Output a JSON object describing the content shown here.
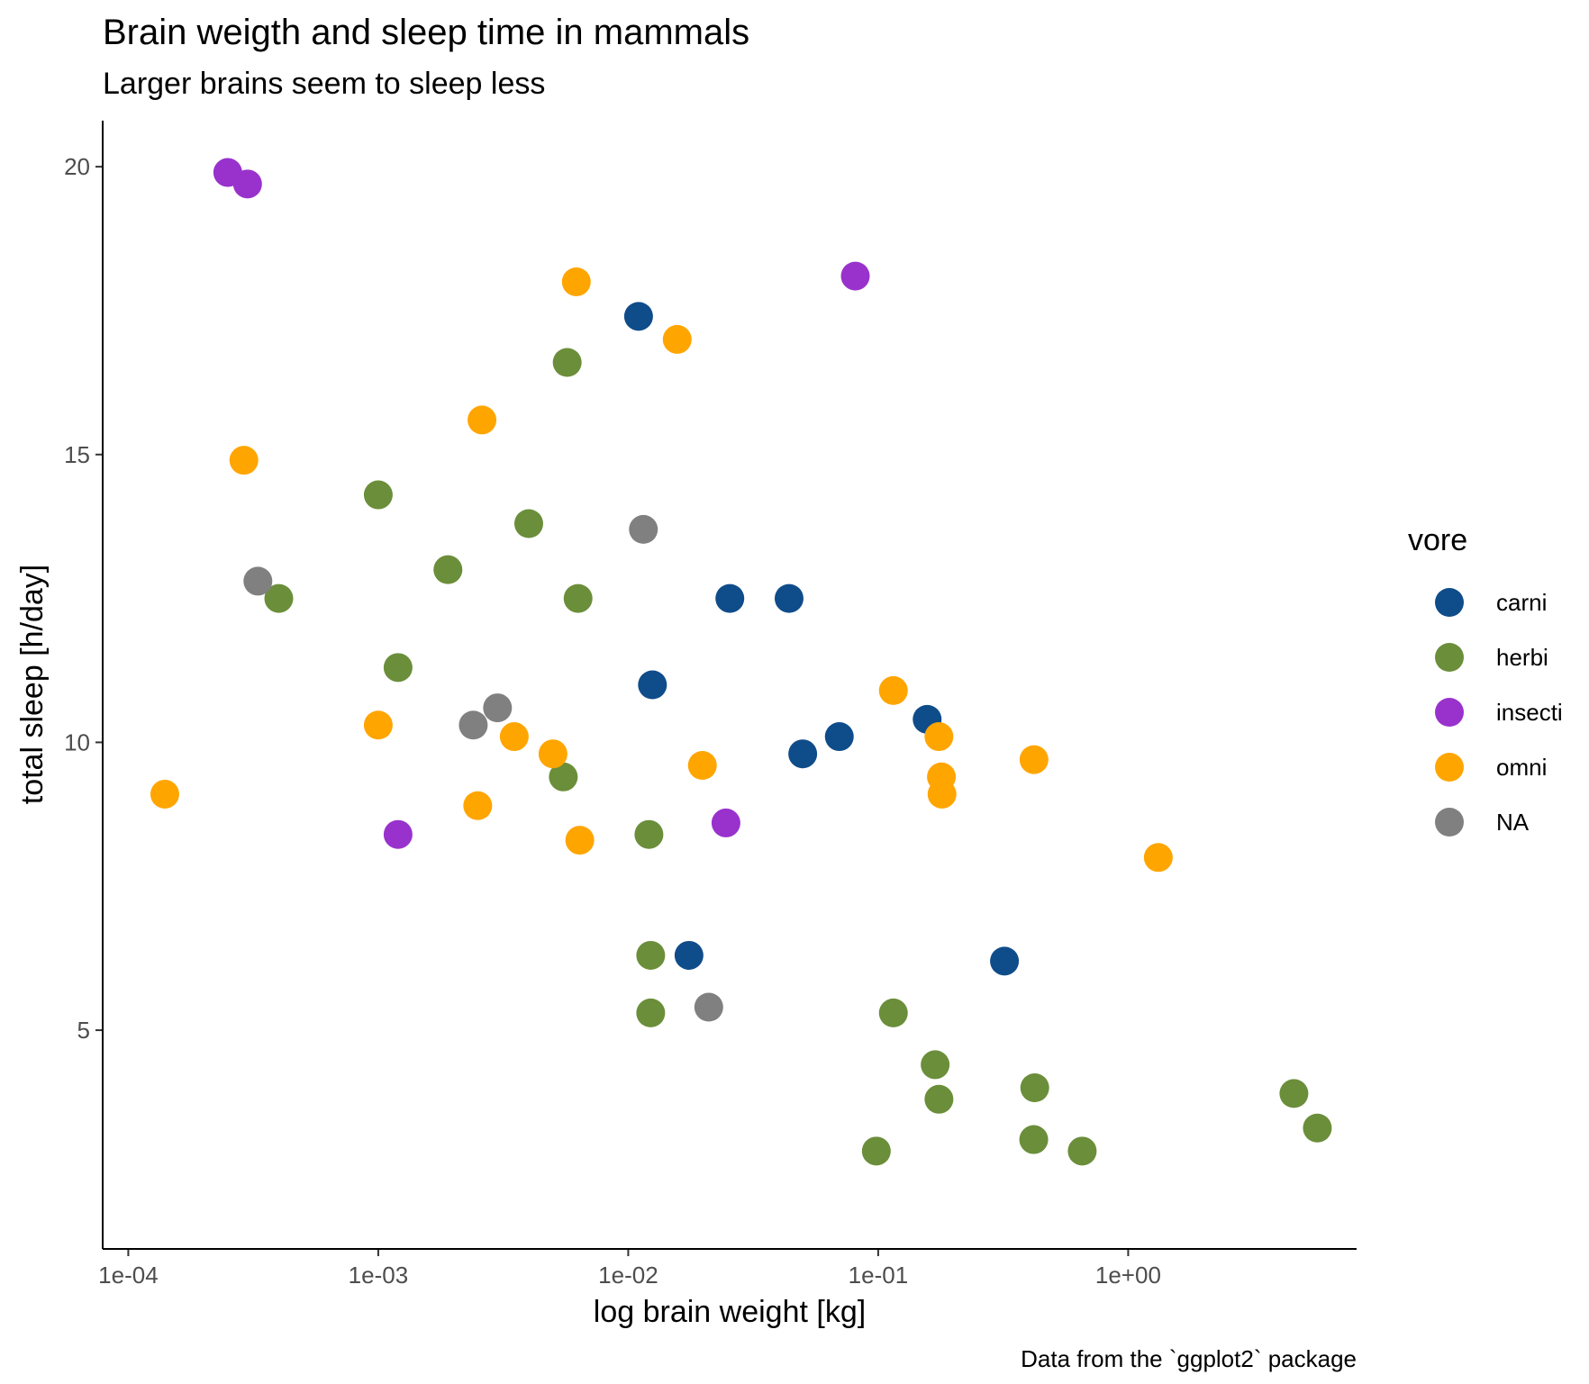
{
  "chart_data": {
    "type": "scatter",
    "title": "Brain weigth and sleep time in mammals",
    "subtitle": "Larger brains seem to sleep less",
    "caption": "Data from the `ggplot2` package",
    "xlabel": "log brain weight [kg]",
    "ylabel": "total sleep [h/day]",
    "x_scale": "log10",
    "xlim": [
      7.9e-05,
      8.2
    ],
    "ylim": [
      1.2,
      20.8
    ],
    "x_ticks": [
      0.0001,
      0.001,
      0.01,
      0.1,
      1
    ],
    "x_tick_labels": [
      "1e-04",
      "1e-03",
      "1e-02",
      "1e-01",
      "1e+00"
    ],
    "y_ticks": [
      5,
      10,
      15,
      20
    ],
    "y_tick_labels": [
      "5",
      "10",
      "15",
      "20"
    ],
    "grid": false,
    "legend": {
      "title": "vore",
      "position": "right"
    },
    "series": [
      {
        "name": "carni",
        "color": "#0f4c8a",
        "points": [
          [
            0.011,
            17.4
          ],
          [
            0.0255,
            12.5
          ],
          [
            0.044,
            12.5
          ],
          [
            0.0125,
            11.0
          ],
          [
            0.157,
            10.4
          ],
          [
            0.0699,
            10.1
          ],
          [
            0.0499,
            9.8
          ],
          [
            0.0175,
            6.3
          ],
          [
            0.32,
            6.2
          ]
        ]
      },
      {
        "name": "herbi",
        "color": "#6b8e3a",
        "points": [
          [
            0.0057,
            16.6
          ],
          [
            0.001,
            14.3
          ],
          [
            0.004,
            13.8
          ],
          [
            0.0019,
            13.0
          ],
          [
            0.0063,
            12.5
          ],
          [
            0.0004,
            12.5
          ],
          [
            0.0012,
            11.3
          ],
          [
            0.0055,
            9.4
          ],
          [
            0.0121,
            8.4
          ],
          [
            0.0123,
            6.3
          ],
          [
            0.0123,
            5.3
          ],
          [
            0.115,
            5.3
          ],
          [
            0.169,
            4.4
          ],
          [
            0.423,
            4.0
          ],
          [
            0.175,
            3.8
          ],
          [
            4.603,
            3.9
          ],
          [
            5.712,
            3.3
          ],
          [
            0.0983,
            2.9
          ],
          [
            0.419,
            3.1
          ],
          [
            0.655,
            2.9
          ]
        ]
      },
      {
        "name": "insecti",
        "color": "#9932cc",
        "points": [
          [
            0.00025,
            19.9
          ],
          [
            0.0003,
            19.7
          ],
          [
            0.081,
            18.1
          ],
          [
            0.0012,
            8.4
          ],
          [
            0.0246,
            8.6
          ]
        ]
      },
      {
        "name": "omni",
        "color": "#ffa500",
        "points": [
          [
            0.0062,
            18.0
          ],
          [
            0.0157,
            17.0
          ],
          [
            0.0026,
            15.6
          ],
          [
            0.00029,
            14.9
          ],
          [
            0.115,
            10.9
          ],
          [
            0.001,
            10.3
          ],
          [
            0.0035,
            10.1
          ],
          [
            0.175,
            10.1
          ],
          [
            0.005,
            9.8
          ],
          [
            0.0198,
            9.6
          ],
          [
            0.42,
            9.7
          ],
          [
            0.179,
            9.4
          ],
          [
            0.00014,
            9.1
          ],
          [
            0.18,
            9.1
          ],
          [
            0.0025,
            8.9
          ],
          [
            0.0064,
            8.3
          ],
          [
            1.32,
            8.0
          ]
        ]
      },
      {
        "name": "NA",
        "color": "#808080",
        "points": [
          [
            0.0115,
            13.7
          ],
          [
            0.00033,
            12.8
          ],
          [
            0.003,
            10.6
          ],
          [
            0.0024,
            10.3
          ],
          [
            0.021,
            5.4
          ]
        ]
      }
    ]
  }
}
